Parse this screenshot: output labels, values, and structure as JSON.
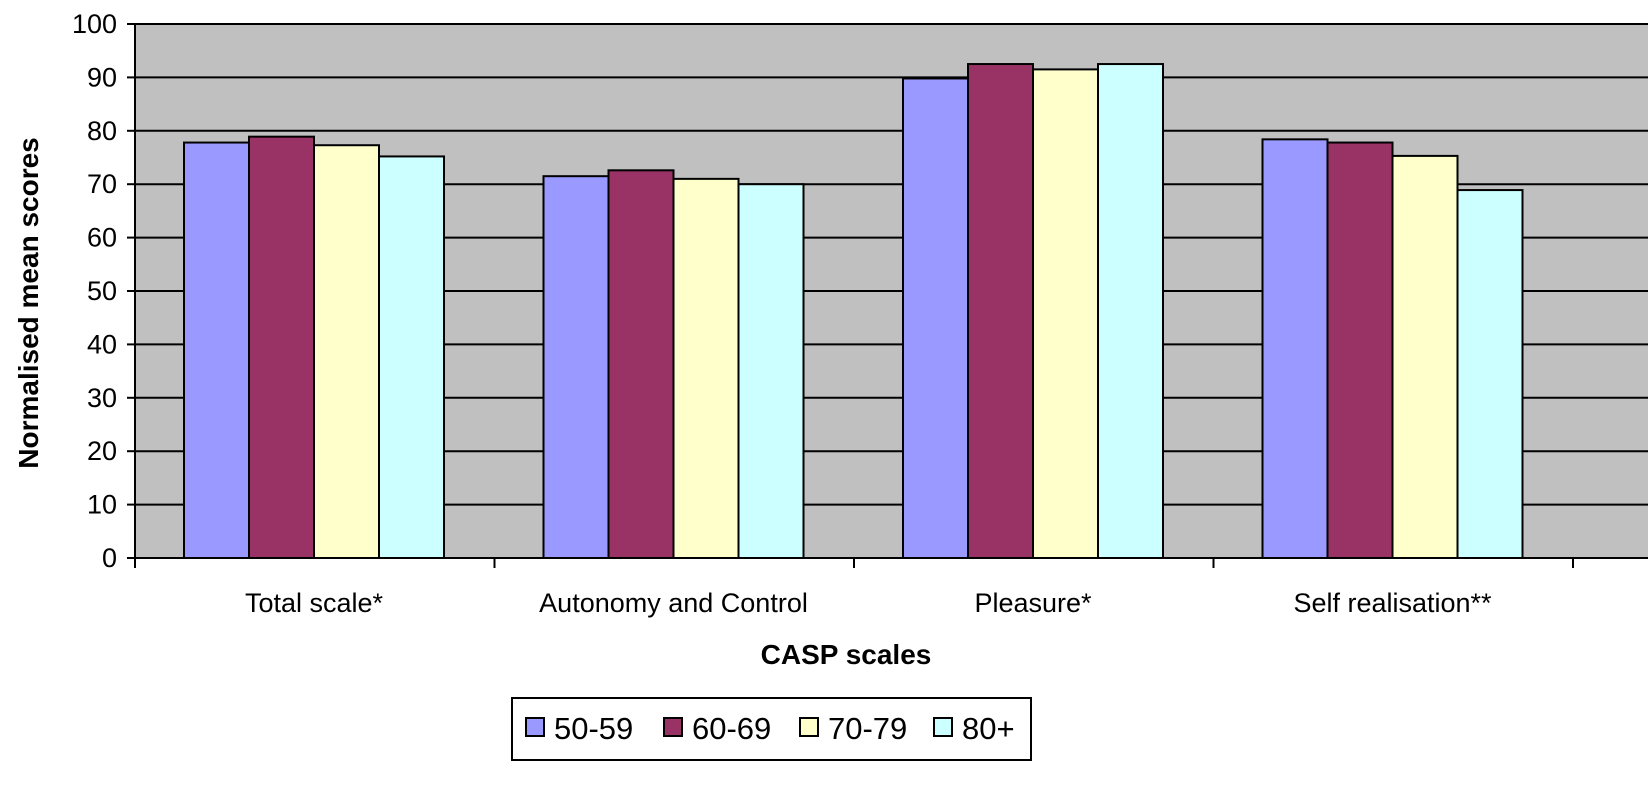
{
  "chart_data": {
    "type": "bar",
    "categories": [
      "Total scale*",
      "Autonomy and Control",
      "Pleasure*",
      "Self realisation**"
    ],
    "series": [
      {
        "name": "50-59",
        "color": "#9999ff",
        "values": [
          77.8,
          71.5,
          89.8,
          78.4
        ]
      },
      {
        "name": "60-69",
        "color": "#993366",
        "values": [
          78.9,
          72.6,
          92.5,
          77.8
        ]
      },
      {
        "name": "70-79",
        "color": "#ffffcc",
        "values": [
          77.3,
          71.0,
          91.5,
          75.3
        ]
      },
      {
        "name": "80+",
        "color": "#ccffff",
        "values": [
          75.2,
          70.0,
          92.5,
          68.9
        ]
      }
    ],
    "xlabel": "CASP scales",
    "ylabel": "Normalised mean scores",
    "ylim": [
      0,
      100
    ],
    "yticks": [
      0,
      10,
      20,
      30,
      40,
      50,
      60,
      70,
      80,
      90,
      100
    ],
    "grid": true,
    "plot_background": "#c0c0c0",
    "legend_position": "bottom"
  }
}
